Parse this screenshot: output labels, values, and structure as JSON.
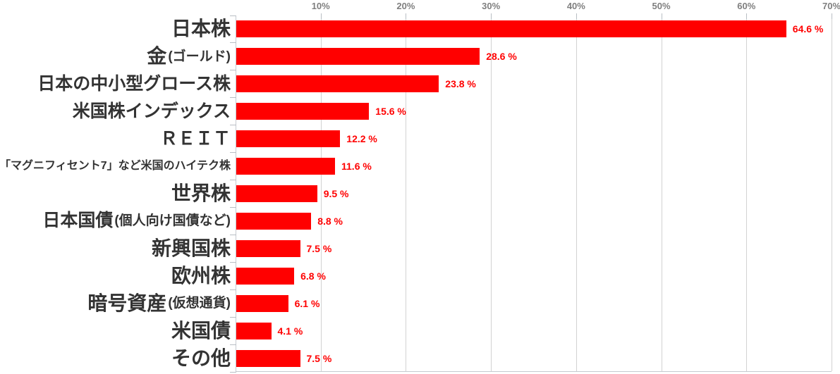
{
  "chart_data": {
    "type": "bar",
    "orientation": "horizontal",
    "title": "",
    "categories": [
      "日本株",
      "金(ゴールド)",
      "日本の中小型グロース株",
      "米国株インデックス",
      "ＲＥＩＴ",
      "「マグニフィセント7」など米国のハイテク株",
      "世界株",
      "日本国債 (個人向け国債など)",
      "新興国株",
      "欧州株",
      "暗号資産(仮想通貨)",
      "米国債",
      "その他"
    ],
    "values": [
      64.6,
      28.6,
      23.8,
      15.6,
      12.2,
      11.6,
      9.5,
      8.8,
      7.5,
      6.8,
      6.1,
      4.1,
      7.5
    ],
    "value_labels": [
      "64.6 %",
      "28.6 %",
      "23.8 %",
      "15.6 %",
      "12.2 %",
      "11.6 %",
      "9.5 %",
      "8.8 %",
      "7.5 %",
      "6.8 %",
      "6.1 %",
      "4.1 %",
      "7.5 %"
    ],
    "xlabel": "",
    "ylabel": "",
    "xlim": [
      0,
      70
    ],
    "x_tick_labels": [
      "10%",
      "20%",
      "30%",
      "40%",
      "50%",
      "60%",
      "70%"
    ],
    "x_tick_values": [
      10,
      20,
      30,
      40,
      50,
      60,
      70
    ],
    "grid": true,
    "legend_position": "none",
    "axis_position": "top",
    "bar_color": "#ff0000",
    "value_label_color": "#ff0000",
    "category_label_color": "#333333",
    "axis_label_color": "#7f7f7f",
    "gridline_color": "#d2d2d2"
  },
  "rows": [
    {
      "main": "日本株",
      "sub": "",
      "size": "s-xl",
      "value": 64.6,
      "value_label": "64.6 %"
    },
    {
      "main": "金",
      "sub": "(ゴールド)",
      "size": "s-xl",
      "value": 28.6,
      "value_label": "28.6 %"
    },
    {
      "main": "日本の中小型グロース株",
      "sub": "",
      "size": "s-lg",
      "value": 23.8,
      "value_label": "23.8 %"
    },
    {
      "main": "米国株インデックス",
      "sub": "",
      "size": "s-lg",
      "value": 15.6,
      "value_label": "15.6 %"
    },
    {
      "main": "ＲＥＩＴ",
      "sub": "",
      "size": "s-lg",
      "value": 12.2,
      "value_label": "12.2 %"
    },
    {
      "main": "「マグニフィセント7」など米国のハイテク株",
      "sub": "",
      "size": "s-sm",
      "value": 11.6,
      "value_label": "11.6 %"
    },
    {
      "main": "世界株",
      "sub": "",
      "size": "s-xl",
      "value": 9.5,
      "value_label": "9.5 %"
    },
    {
      "main": "日本国債",
      "sub": " (個人向け国債など)",
      "size": "s-lg",
      "value": 8.8,
      "value_label": "8.8 %"
    },
    {
      "main": "新興国株",
      "sub": "",
      "size": "s-xl",
      "value": 7.5,
      "value_label": "7.5 %"
    },
    {
      "main": "欧州株",
      "sub": "",
      "size": "s-xl",
      "value": 6.8,
      "value_label": "6.8 %"
    },
    {
      "main": "暗号資産",
      "sub": "(仮想通貨)",
      "size": "s-xl",
      "value": 6.1,
      "value_label": "6.1 %"
    },
    {
      "main": "米国債",
      "sub": "",
      "size": "s-xl",
      "value": 4.1,
      "value_label": "4.1 %"
    },
    {
      "main": "その他",
      "sub": "",
      "size": "s-xl",
      "value": 7.5,
      "value_label": "7.5 %"
    }
  ]
}
